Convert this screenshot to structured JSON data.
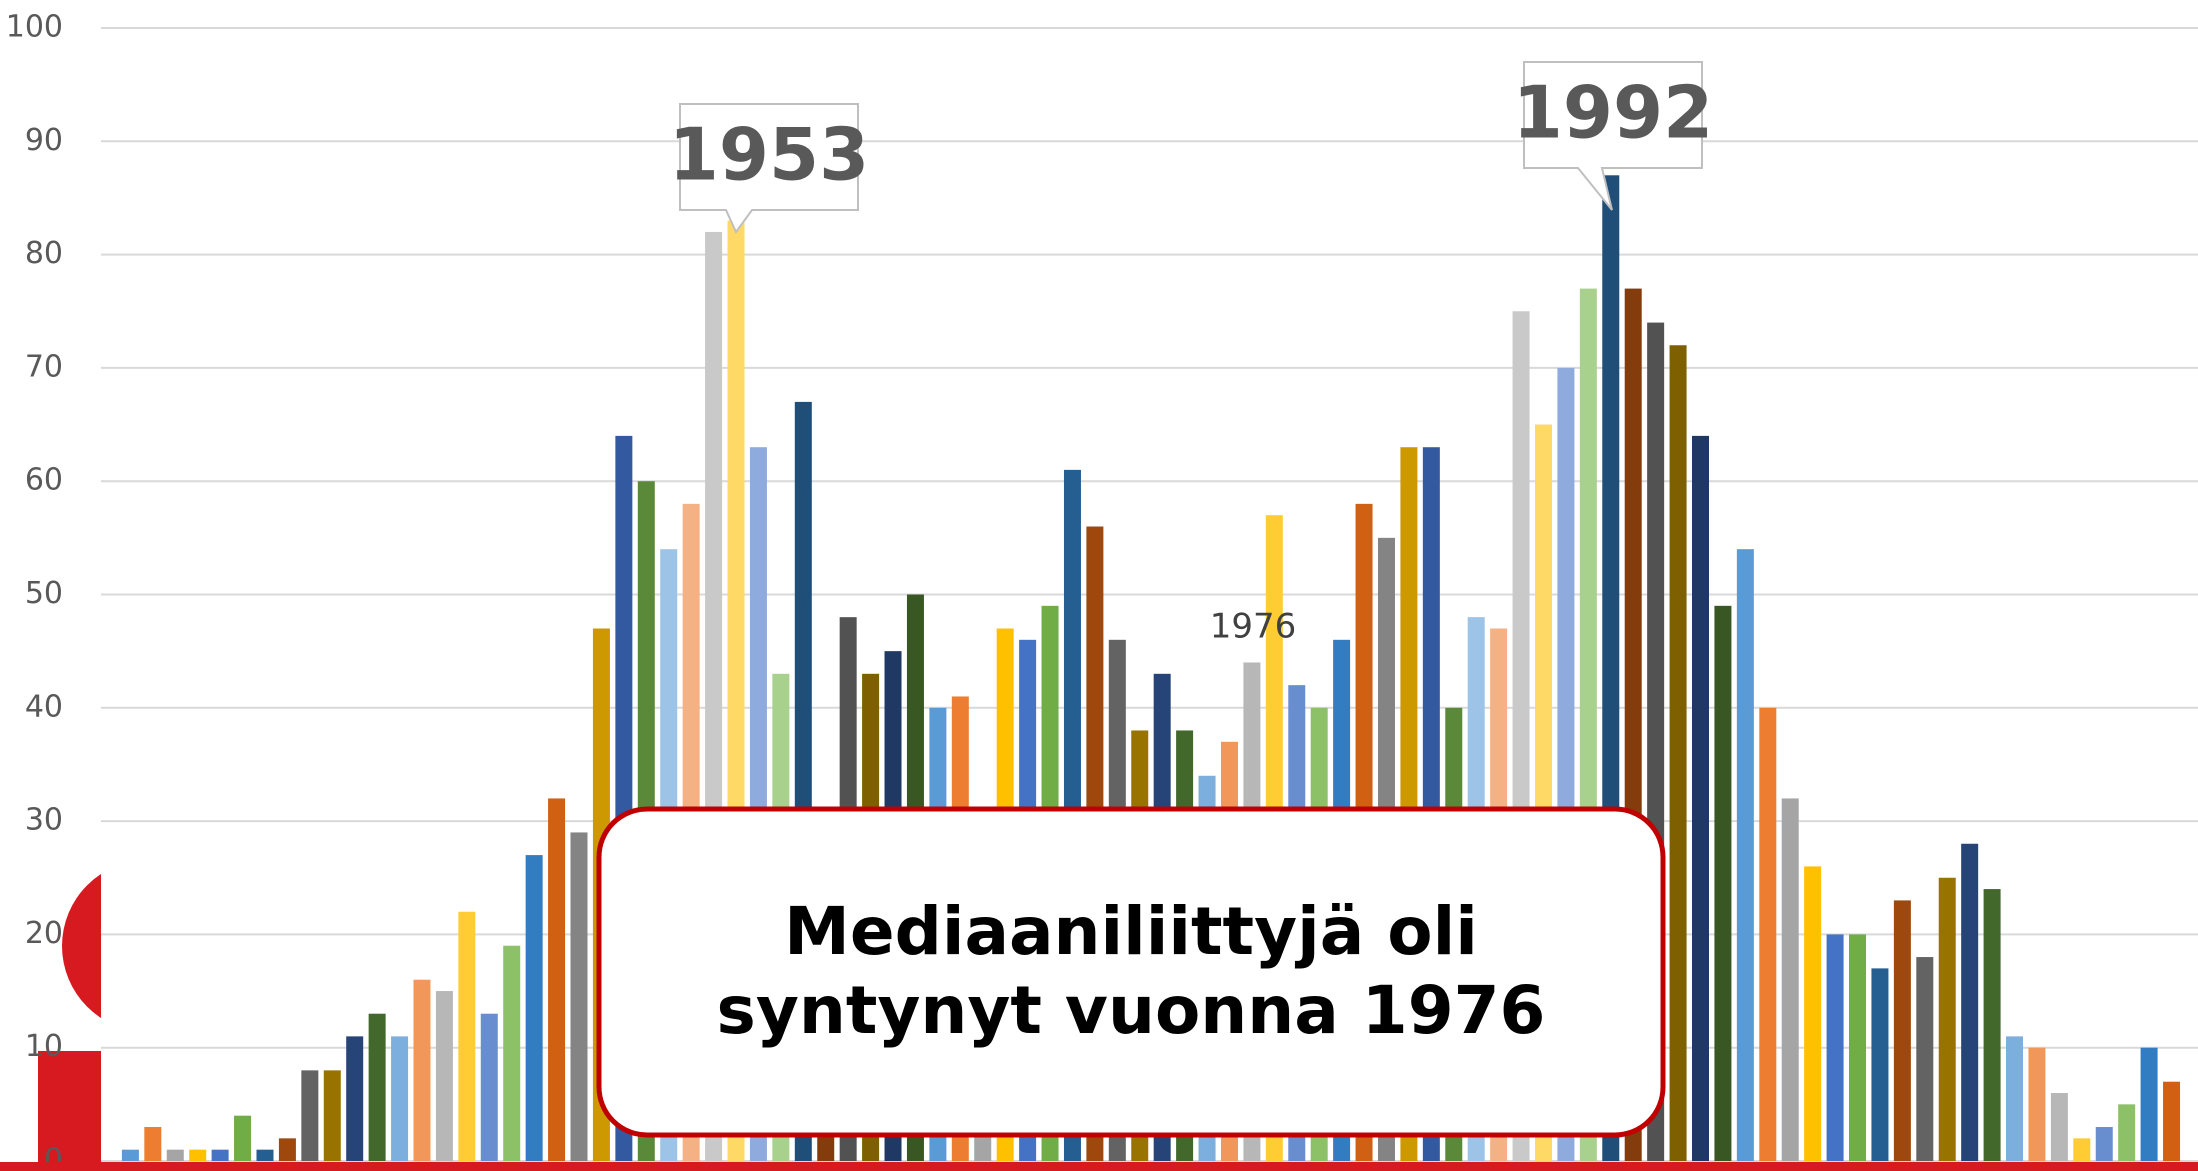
{
  "chart_data": {
    "type": "bar",
    "categories": [
      null,
      null,
      null,
      null,
      null,
      null,
      null,
      null,
      null,
      null,
      null,
      null,
      null,
      null,
      null,
      null,
      null,
      null,
      null,
      null,
      null,
      null,
      null,
      null,
      null,
      null,
      null,
      null,
      null,
      null,
      null,
      null,
      null,
      null,
      null,
      null,
      null,
      null,
      null,
      null,
      null,
      null,
      null,
      null,
      null,
      null,
      null,
      null,
      null,
      null,
      null,
      null,
      null,
      null,
      null,
      null,
      null,
      null,
      null,
      null,
      null,
      null,
      null,
      null,
      null,
      null,
      null,
      null,
      null,
      null,
      null,
      null,
      null,
      null,
      null,
      null,
      null,
      null,
      null,
      null,
      null,
      null,
      null,
      null,
      null,
      null,
      null,
      null,
      null,
      null,
      null,
      null
    ],
    "values": [
      1,
      3,
      1,
      1,
      1,
      4,
      1,
      2,
      8,
      8,
      11,
      13,
      11,
      16,
      15,
      22,
      13,
      19,
      27,
      32,
      29,
      47,
      64,
      60,
      54,
      58,
      82,
      83,
      63,
      43,
      67,
      28,
      48,
      43,
      45,
      50,
      40,
      41,
      30,
      47,
      46,
      49,
      61,
      56,
      46,
      38,
      43,
      38,
      34,
      37,
      44,
      57,
      42,
      40,
      46,
      58,
      55,
      63,
      63,
      40,
      48,
      47,
      75,
      65,
      70,
      77,
      87,
      77,
      74,
      72,
      64,
      49,
      54,
      40,
      32,
      26,
      20,
      20,
      17,
      23,
      18,
      25,
      28,
      24,
      11,
      10,
      6,
      2,
      3,
      5,
      10,
      7
    ],
    "palette": [
      "#5b9bd5",
      "#ed7d31",
      "#a5a5a5",
      "#ffc000",
      "#4472c4",
      "#70ad47",
      "#255e91",
      "#9e480e",
      "#636363",
      "#997300",
      "#264478",
      "#43682b",
      "#7cafdd",
      "#f1975a",
      "#b7b7b7",
      "#ffcd33",
      "#698ed0",
      "#8cc168",
      "#327dc2",
      "#d26012",
      "#848484",
      "#cc9a00",
      "#335aa1",
      "#5a8a39",
      "#9dc3e6",
      "#f4b183",
      "#c9c9c9",
      "#ffd966",
      "#8faadc",
      "#a9d18e",
      "#1f4e79",
      "#843c0c",
      "#525252",
      "#7f6000",
      "#203864",
      "#385723"
    ],
    "ylim": [
      0,
      100
    ],
    "yticks": [
      0,
      10,
      20,
      30,
      40,
      50,
      60,
      70,
      80,
      90,
      100
    ],
    "grid": true,
    "annotations": [
      "1953",
      "1992",
      "1976"
    ],
    "message": [
      "Mediaaniliittyjä oli",
      "syntynyt vuonna 1976"
    ]
  }
}
